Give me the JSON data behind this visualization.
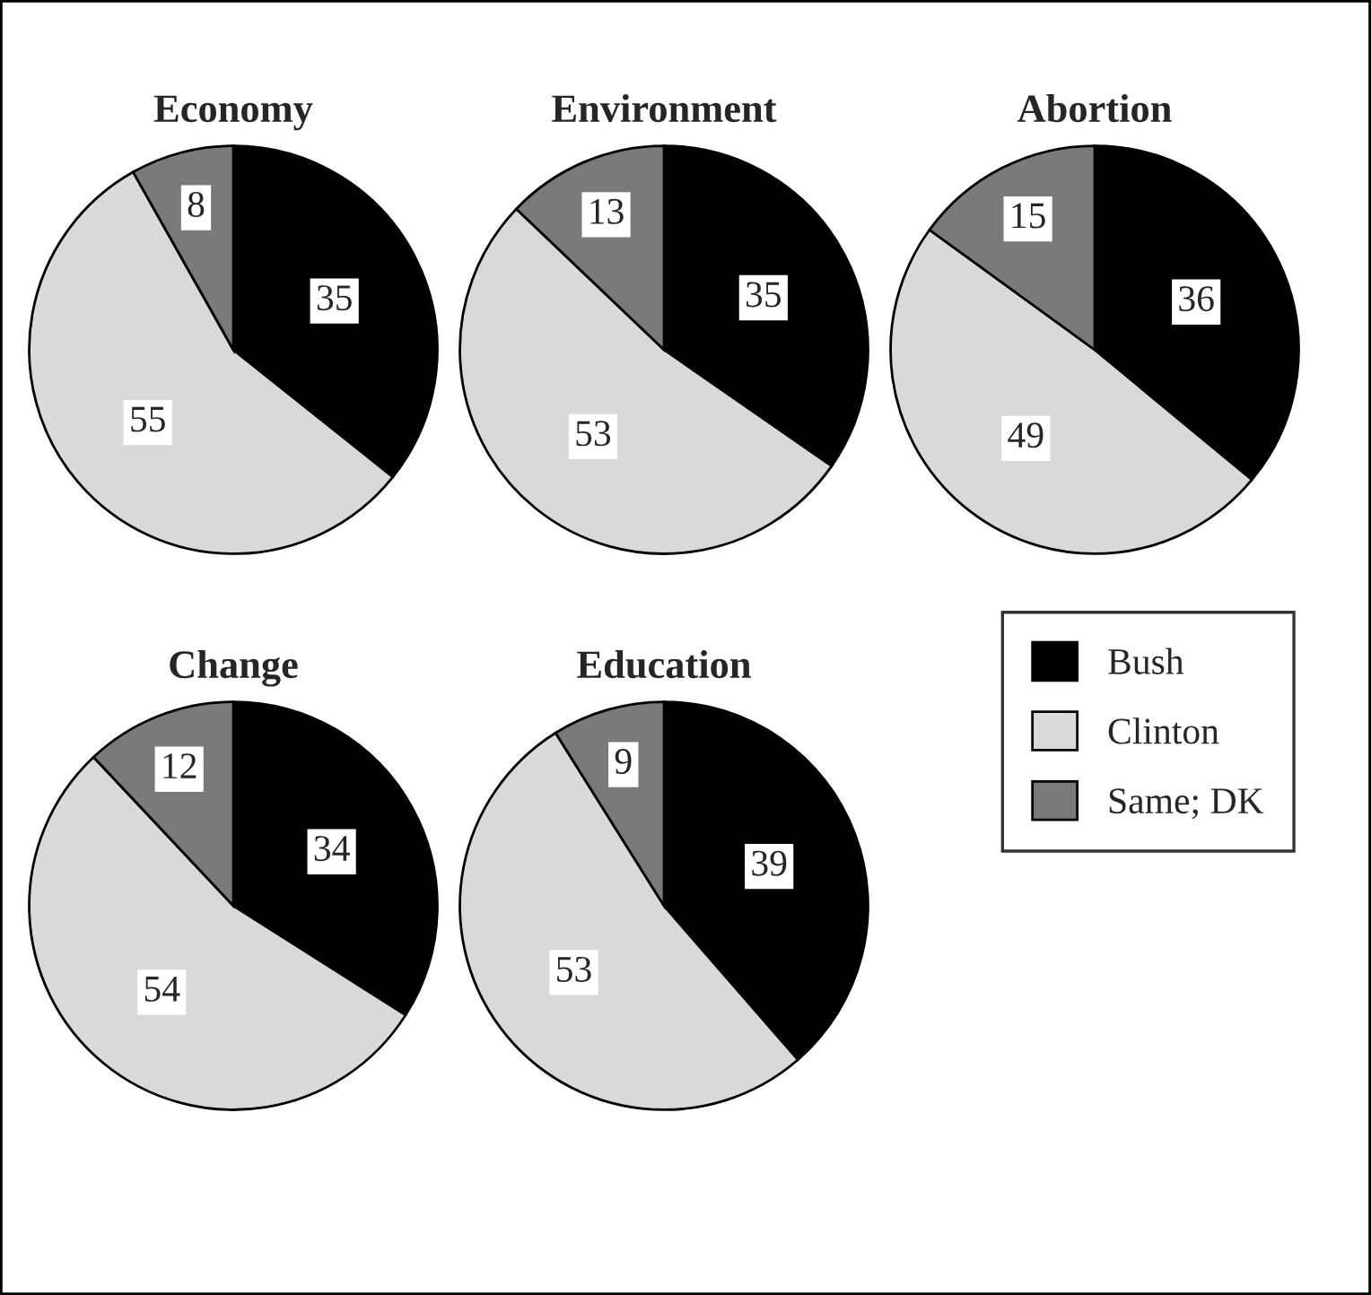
{
  "chart_data": [
    {
      "type": "pie",
      "title": "Economy",
      "categories": [
        "Bush",
        "Clinton",
        "Same; DK"
      ],
      "values": [
        35,
        55,
        8
      ],
      "colors": [
        "#000000",
        "#d9d9d9",
        "#7a7a7a"
      ],
      "data_labels": true,
      "legend": "right"
    },
    {
      "type": "pie",
      "title": "Environment",
      "categories": [
        null,
        null,
        null
      ],
      "values": [
        35,
        53,
        13
      ],
      "colors": [
        "#000000",
        "#d9d9d9",
        "#7a7a7a"
      ],
      "data_labels": true
    },
    {
      "type": "pie",
      "title": "Abortion",
      "categories": [
        null,
        null,
        null
      ],
      "values": [
        36,
        49,
        15
      ],
      "colors": [
        "#000000",
        "#d9d9d9",
        "#7a7a7a"
      ],
      "data_labels": true
    },
    {
      "type": "pie",
      "title": "Change",
      "categories": [
        null,
        null,
        null
      ],
      "values": [
        34,
        54,
        12
      ],
      "colors": [
        "#000000",
        "#d9d9d9",
        "#7a7a7a"
      ],
      "data_labels": true
    },
    {
      "type": "pie",
      "title": "Education",
      "categories": [
        null,
        null,
        null
      ],
      "values": [
        39,
        53,
        9
      ],
      "colors": [
        "#000000",
        "#d9d9d9",
        "#7a7a7a"
      ],
      "data_labels": true
    }
  ]
}
